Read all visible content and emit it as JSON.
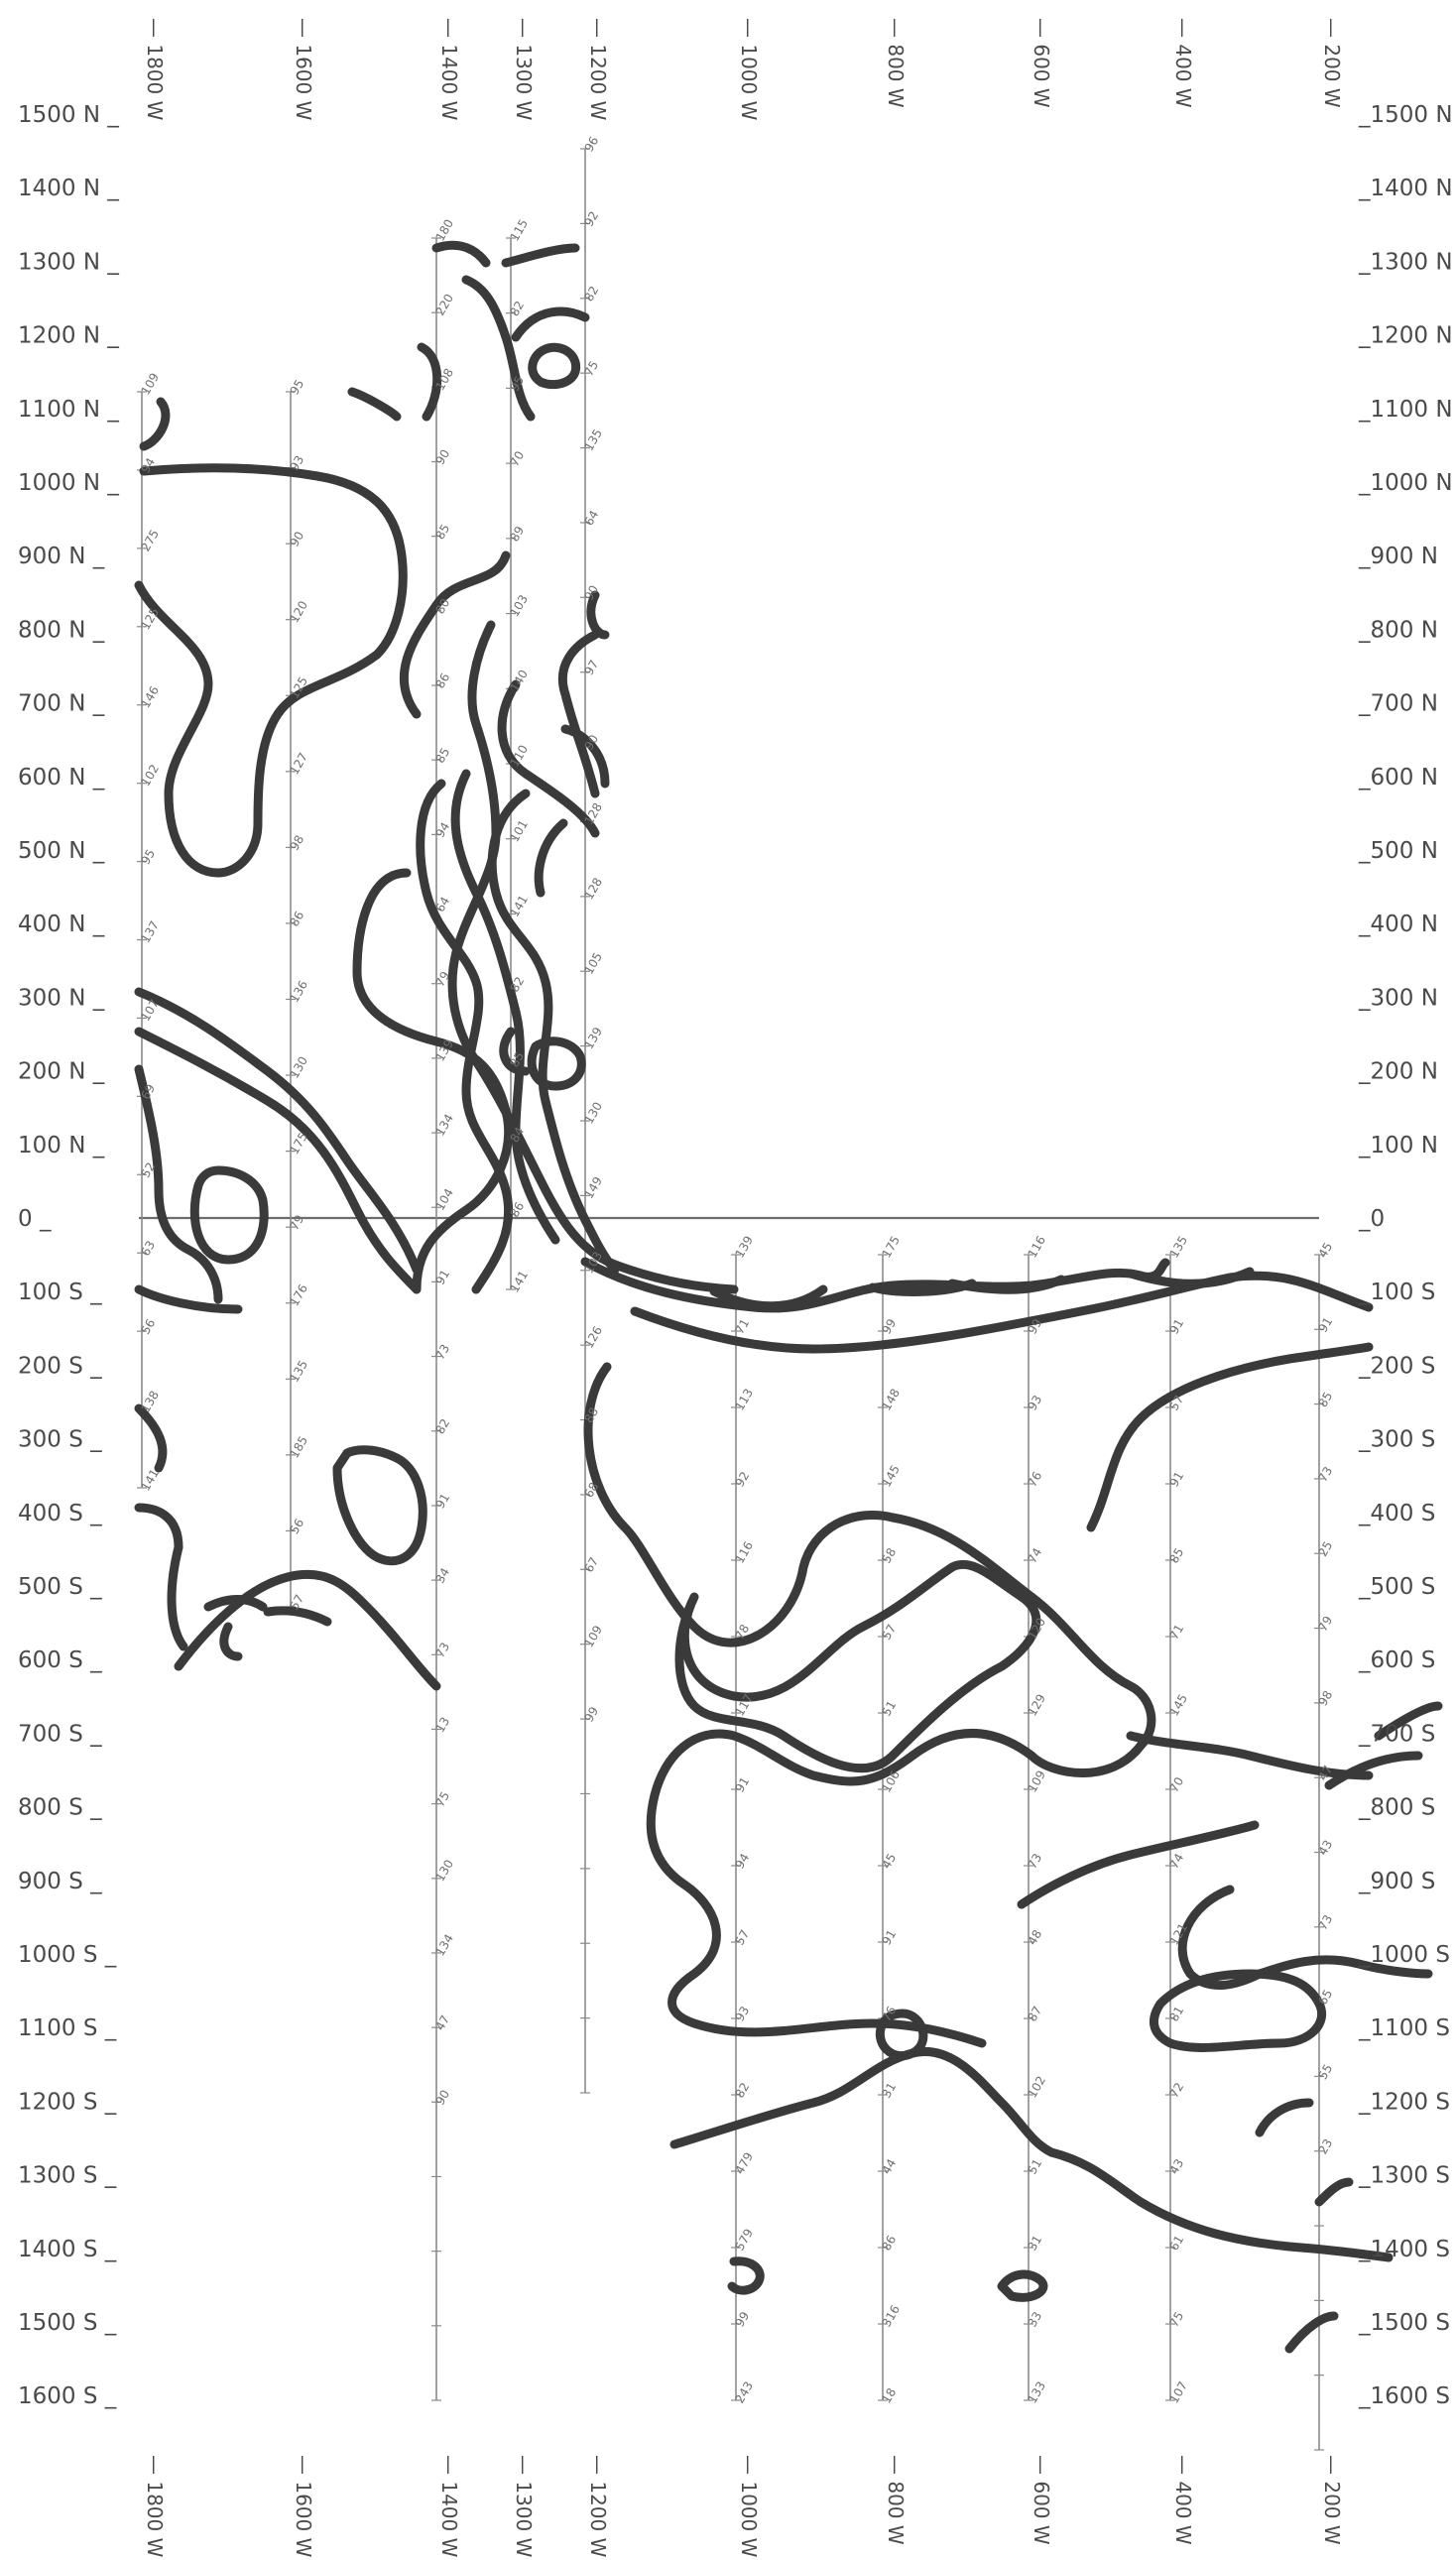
{
  "northing_labels": [
    "1500 N",
    "1400 N",
    "1300 N",
    "1200 N",
    "1100 N",
    "1000 N",
    "900 N",
    "800 N",
    "700 N",
    "600 N",
    "500 N",
    "400 N",
    "300 N",
    "200 N",
    "100 N",
    "0",
    "100 S",
    "200 S",
    "300 S",
    "400 S",
    "500 S",
    "600 S",
    "700 S",
    "800 S",
    "900 S",
    "1000 S",
    "1100 S",
    "1200 S",
    "1300 S",
    "1400 S",
    "1500 S",
    "1600 S"
  ],
  "line_labels": [
    "1800 W",
    "1600 W",
    "1400 W",
    "1300 W",
    "1200 W",
    "1000 W",
    "800 W",
    "600 W",
    "400 W",
    "200 W"
  ],
  "station_values": {
    "1800 W": [
      "109",
      "94",
      "275",
      "125",
      "146",
      "102",
      "95",
      "137",
      "107",
      "69",
      "52",
      "63",
      "56",
      "138",
      "141",
      "61",
      "113",
      "133",
      "103",
      "92",
      "86",
      "70",
      "95",
      "89"
    ],
    "1600 W": [
      "95",
      "93",
      "90",
      "120",
      "125",
      "127",
      "98",
      "86",
      "136",
      "130",
      "175",
      "79",
      "176",
      "135",
      "185",
      "56",
      "57",
      "136"
    ],
    "1400 W": [
      "180",
      "220",
      "108",
      "90",
      "85",
      "80",
      "86",
      "85",
      "94",
      "64",
      "79",
      "139",
      "134",
      "104",
      "91",
      "73",
      "82",
      "91",
      "34",
      "73",
      "13",
      "75",
      "130",
      "134",
      "47",
      "90"
    ],
    "1300 W": [
      "115",
      "82",
      "95",
      "70",
      "89",
      "103",
      "140",
      "110",
      "101",
      "141",
      "82",
      "85",
      "84",
      "86",
      "141",
      "96",
      "85"
    ],
    "1200 W": [
      "96",
      "92",
      "82",
      "75",
      "135",
      "64",
      "90",
      "97",
      "90",
      "128",
      "128",
      "105",
      "139",
      "130",
      "149",
      "103",
      "126",
      "88",
      "68",
      "67",
      "109",
      "99"
    ],
    "1000 W": [
      "139",
      "71",
      "113",
      "92",
      "116",
      "78",
      "117",
      "91",
      "94",
      "57",
      "93",
      "82",
      "479",
      "579",
      "99",
      "243",
      "124",
      "229",
      "75"
    ],
    "800 W": [
      "175",
      "99",
      "148",
      "145",
      "58",
      "57",
      "51",
      "106",
      "45",
      "91",
      "76",
      "31",
      "44",
      "86",
      "316",
      "18",
      "174",
      "114",
      "88"
    ],
    "600 W": [
      "116",
      "99",
      "93",
      "76",
      "74",
      "120",
      "129",
      "109",
      "73",
      "48",
      "87",
      "102",
      "51",
      "31",
      "33",
      "133"
    ],
    "400 W": [
      "135",
      "91",
      "57",
      "91",
      "85",
      "71",
      "145",
      "70",
      "74",
      "121",
      "81",
      "72",
      "43",
      "61",
      "75",
      "107"
    ],
    "200 W": [
      "45",
      "91",
      "85",
      "73",
      "25",
      "79",
      "98",
      "47",
      "43",
      "73",
      "65",
      "55",
      "23"
    ]
  }
}
